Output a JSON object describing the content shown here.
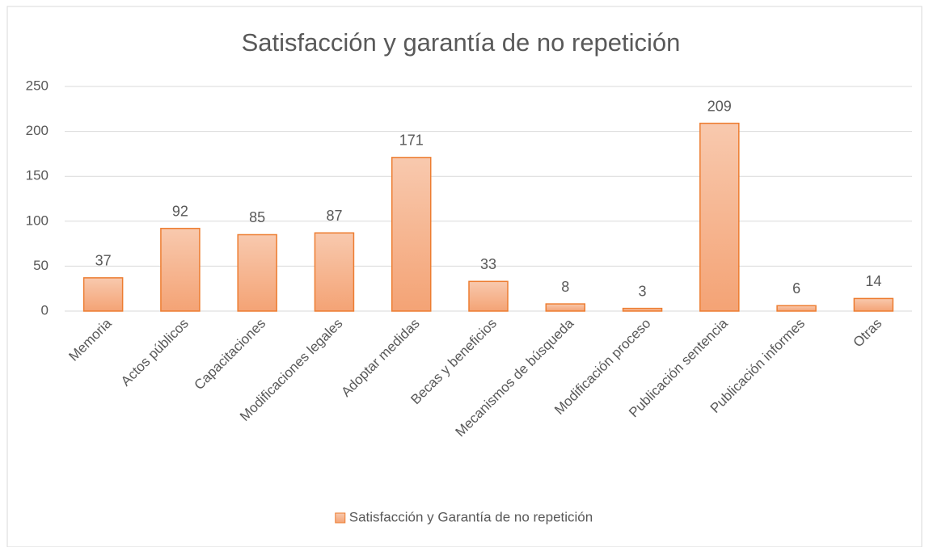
{
  "chart_data": {
    "type": "bar",
    "title": "Satisfacción y garantía de no repetición",
    "categories": [
      "Memoria",
      "Actos públicos",
      "Capacitaciones",
      "Modificaciones legales",
      "Adoptar medidas",
      "Becas y beneficios",
      "Mecanismos de búsqueda",
      "Modificación proceso",
      "Publicación sentencia",
      "Publicación informes",
      "Otras"
    ],
    "series": [
      {
        "name": "Satisfacción y Garantía de no repetición",
        "color": "#f4b183",
        "edgecolor": "#ed7d31",
        "values": [
          37,
          92,
          85,
          87,
          171,
          33,
          8,
          3,
          209,
          6,
          14
        ]
      }
    ],
    "ylim": [
      0,
      250
    ],
    "yticks": [
      0,
      50,
      100,
      150,
      200,
      250
    ],
    "grid": true,
    "legend": "bottom"
  }
}
